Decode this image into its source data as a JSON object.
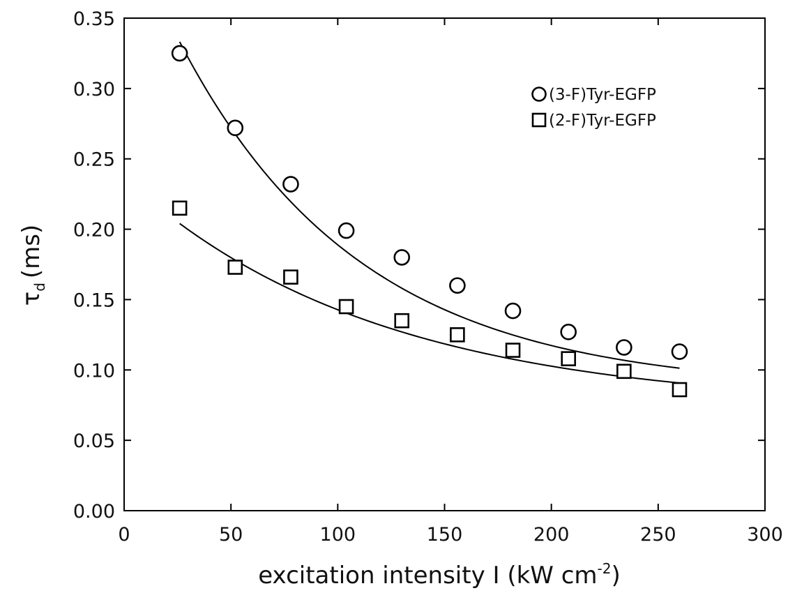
{
  "chart_data": {
    "type": "scatter",
    "xlabel": "excitation intensity I (kW cm",
    "xlabel_sup": "-2",
    "xlabel_end": ")",
    "ylabel_symbol": "τ",
    "ylabel_sub": "d",
    "ylabel_unit": "(ms)",
    "xlim": [
      0,
      300
    ],
    "ylim": [
      0,
      0.35
    ],
    "xticks": [
      0,
      50,
      100,
      150,
      200,
      250,
      300
    ],
    "xtick_labels": [
      "0",
      "50",
      "100",
      "150",
      "200",
      "250",
      "300"
    ],
    "yticks": [
      0,
      0.05,
      0.1,
      0.15,
      0.2,
      0.25,
      0.3,
      0.35
    ],
    "ytick_labels": [
      "0.00",
      "0.05",
      "0.10",
      "0.15",
      "0.20",
      "0.25",
      "0.30",
      "0.35"
    ],
    "grid": false,
    "legend_position": "top-right",
    "series": [
      {
        "name": "(3-F)Tyr-EGFP",
        "marker": "circle",
        "x": [
          26,
          52,
          78,
          104,
          130,
          156,
          182,
          208,
          234,
          260
        ],
        "y": [
          0.325,
          0.272,
          0.232,
          0.199,
          0.18,
          0.16,
          0.142,
          0.127,
          0.116,
          0.113
        ],
        "fit": {
          "y0": 0.0857,
          "a": 0.3365,
          "k": 0.01182
        }
      },
      {
        "name": "(2-F)Tyr-EGFP",
        "marker": "square",
        "x": [
          26,
          52,
          78,
          104,
          130,
          156,
          182,
          208,
          234,
          260
        ],
        "y": [
          0.215,
          0.173,
          0.166,
          0.145,
          0.135,
          0.125,
          0.114,
          0.108,
          0.099,
          0.086
        ],
        "fit": {
          "y0": 0.0727,
          "a": 0.1638,
          "k": 0.00849
        }
      }
    ]
  }
}
